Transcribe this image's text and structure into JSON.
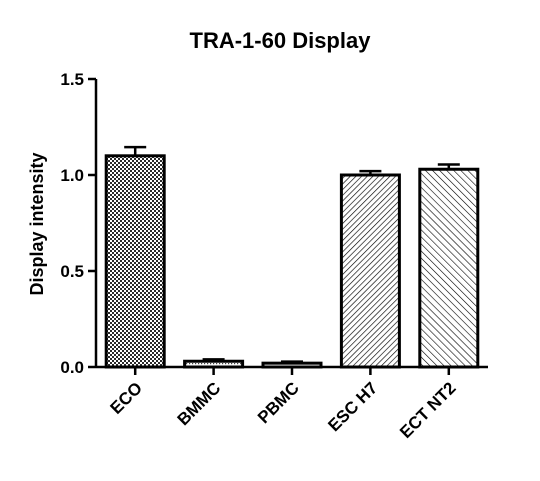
{
  "chart_data": {
    "type": "bar",
    "title": "TRA-1-60 Display",
    "xlabel": "",
    "ylabel": "Display intensity",
    "categories": [
      "ECO",
      "BMMC",
      "PBMC",
      "ESC H7",
      "ECT NT2"
    ],
    "values": [
      1.1,
      0.03,
      0.02,
      1.0,
      1.03
    ],
    "errors": [
      0.045,
      0.01,
      0.008,
      0.02,
      0.025
    ],
    "ylim": [
      0,
      1.5
    ],
    "yticks": [
      0.0,
      0.5,
      1.0,
      1.5
    ],
    "ytick_labels": [
      "0.0",
      "0.5",
      "1.0",
      "1.5"
    ],
    "grid": false,
    "legend": "none",
    "bar_patterns": [
      "checker",
      "dots",
      "dots",
      "hatch-dense",
      "hatch-wide"
    ]
  }
}
